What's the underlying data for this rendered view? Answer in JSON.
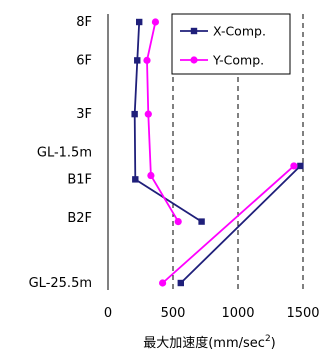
{
  "chart_data": {
    "type": "line",
    "orientation": "horizontal-profile",
    "xlabel": "最大加速度(mm/sec",
    "xlabel_superscript": "2",
    "xlabel_suffix": ")",
    "xlim": [
      0,
      1500
    ],
    "x_ticks": [
      0,
      500,
      1000,
      1500
    ],
    "x_tick_labels": [
      "0",
      "500",
      "1000",
      "1500"
    ],
    "y_levels": [
      {
        "label": "8F",
        "depth": 0
      },
      {
        "label": "6F",
        "depth": 1
      },
      {
        "label": "3F",
        "depth": 2.4
      },
      {
        "label": "GL-1.5m",
        "depth": 3.4
      },
      {
        "label": "B1F",
        "depth": 4.1
      },
      {
        "label": "B2F",
        "depth": 5.1
      },
      {
        "label": "GL-25.5m",
        "depth": 6.8
      }
    ],
    "gridlines": "vertical-dashed",
    "legend_position": "top-right",
    "series": [
      {
        "name": "X-Comp.",
        "color": "#1f1f7a",
        "marker": "square",
        "segments": [
          [
            {
              "x": 240,
              "depth": 0
            },
            {
              "x": 225,
              "depth": 1
            },
            {
              "x": 205,
              "depth": 2.4
            },
            {
              "x": 210,
              "depth": 4.1
            },
            {
              "x": 720,
              "depth": 5.2
            }
          ],
          [
            {
              "x": 1480,
              "depth": 3.75
            },
            {
              "x": 560,
              "depth": 6.8
            }
          ]
        ]
      },
      {
        "name": "Y-Comp.",
        "color": "#ff00ff",
        "marker": "circle",
        "segments": [
          [
            {
              "x": 365,
              "depth": 0
            },
            {
              "x": 300,
              "depth": 1
            },
            {
              "x": 310,
              "depth": 2.4
            },
            {
              "x": 330,
              "depth": 4.0
            },
            {
              "x": 540,
              "depth": 5.2
            }
          ],
          [
            {
              "x": 1430,
              "depth": 3.75
            },
            {
              "x": 420,
              "depth": 6.8
            }
          ]
        ]
      }
    ]
  }
}
